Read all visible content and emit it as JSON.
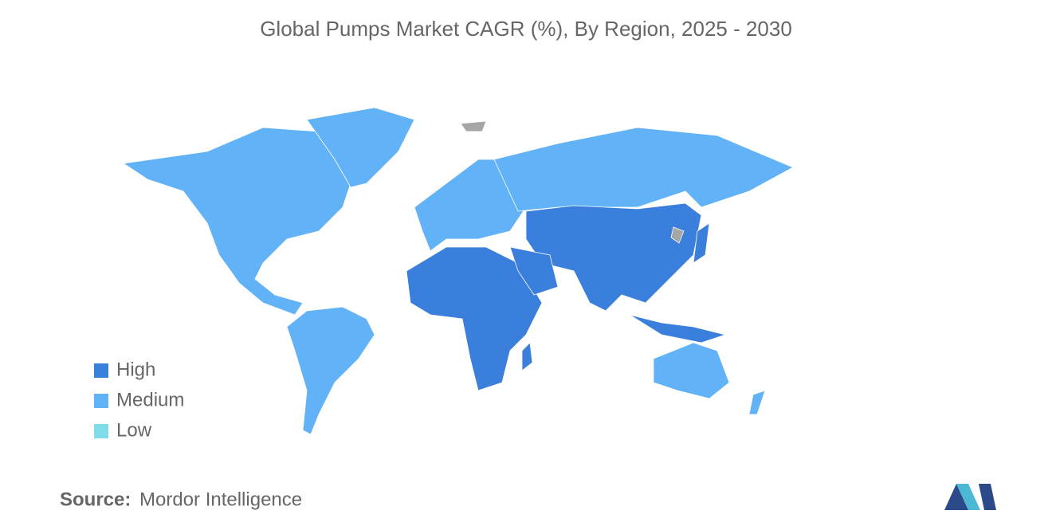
{
  "title": "Global Pumps Market CAGR (%), By Region, 2025 - 2030",
  "legend": [
    {
      "label": "High",
      "color": "#3a7fdb"
    },
    {
      "label": "Medium",
      "color": "#62b2f7"
    },
    {
      "label": "Low",
      "color": "#7fdde9"
    }
  ],
  "source": {
    "label": "Source:",
    "text": "Mordor Intelligence"
  }
}
